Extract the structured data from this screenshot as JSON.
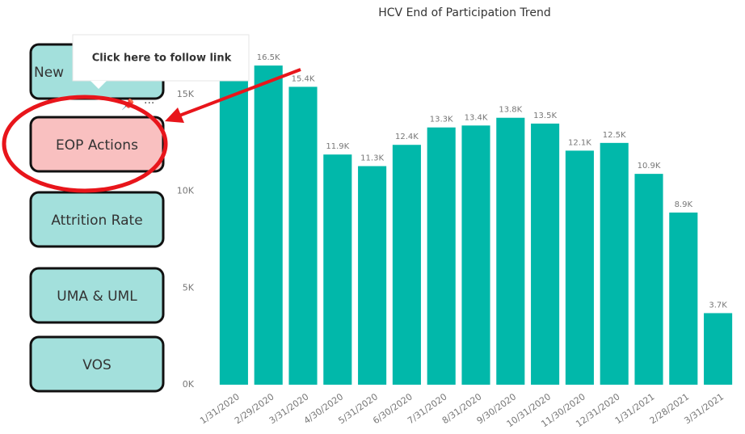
{
  "chart_data": {
    "type": "bar",
    "title": "HCV End of Participation Trend",
    "categories": [
      "1/31/2020",
      "2/29/2020",
      "3/31/2020",
      "4/30/2020",
      "5/31/2020",
      "6/30/2020",
      "7/31/2020",
      "8/31/2020",
      "9/30/2020",
      "10/31/2020",
      "11/30/2020",
      "12/31/2020",
      "1/31/2021",
      "2/28/2021",
      "3/31/2021"
    ],
    "values": [
      15800,
      16500,
      15400,
      11900,
      11300,
      12400,
      13300,
      13400,
      13800,
      13500,
      12100,
      12500,
      10900,
      8900,
      3700
    ],
    "value_labels": [
      null,
      "16.5K",
      "15.4K",
      "11.9K",
      "11.3K",
      "12.4K",
      "13.3K",
      "13.4K",
      "13.8K",
      "13.5K",
      "12.1K",
      "12.5K",
      "10.9K",
      "8.9K",
      "3.7K"
    ],
    "color": "#01b8aa",
    "ylim": [
      0,
      17000
    ],
    "yticks": [
      {
        "value": 0,
        "label": "0K"
      },
      {
        "value": 5000,
        "label": "5K"
      },
      {
        "value": 10000,
        "label": "10K"
      },
      {
        "value": 15000,
        "label": "15K"
      }
    ],
    "grid": false
  },
  "buttons": [
    "New",
    "EOP Actions",
    "Attrition Rate",
    "UMA & UML",
    "VOS"
  ],
  "tooltip": "Click here to follow link"
}
